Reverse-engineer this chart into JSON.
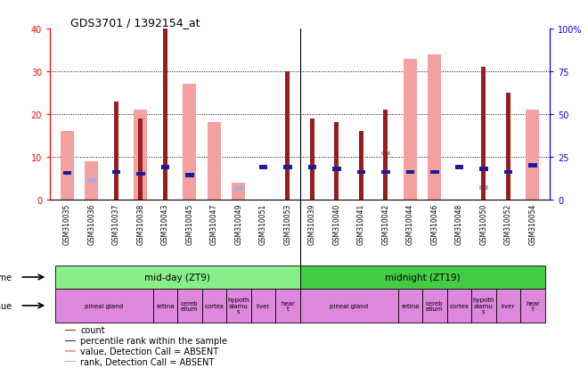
{
  "title": "GDS3701 / 1392154_at",
  "samples": [
    "GSM310035",
    "GSM310036",
    "GSM310037",
    "GSM310038",
    "GSM310043",
    "GSM310045",
    "GSM310047",
    "GSM310049",
    "GSM310051",
    "GSM310053",
    "GSM310039",
    "GSM310040",
    "GSM310041",
    "GSM310042",
    "GSM310044",
    "GSM310046",
    "GSM310048",
    "GSM310050",
    "GSM310052",
    "GSM310054"
  ],
  "count_values": [
    0,
    0,
    23,
    19,
    40,
    0,
    0,
    0,
    0,
    30,
    19,
    18,
    16,
    21,
    0,
    0,
    0,
    31,
    25,
    0
  ],
  "rank_values": [
    15.5,
    0,
    16,
    15,
    19,
    14,
    0,
    0,
    19,
    19,
    19,
    18,
    16,
    16,
    16,
    16,
    19,
    18,
    16,
    20
  ],
  "absent_count_values": [
    16,
    9,
    0,
    21,
    0,
    27,
    18,
    4,
    0,
    0,
    0,
    0,
    0,
    0,
    33,
    34,
    0,
    0,
    0,
    21
  ],
  "absent_rank_values": [
    0,
    11,
    0,
    0,
    0,
    0,
    0,
    6.5,
    0,
    0,
    0,
    0,
    0,
    27,
    0,
    0,
    0,
    7,
    0,
    0
  ],
  "ylim": [
    0,
    40
  ],
  "yticks": [
    0,
    10,
    20,
    30,
    40
  ],
  "ytick_labels": [
    "0",
    "10",
    "20",
    "30",
    "40"
  ],
  "y2ticks": [
    0,
    25,
    50,
    75,
    100
  ],
  "y2tick_labels": [
    "0",
    "25",
    "50",
    "75",
    "100%"
  ],
  "color_count": "#9B1C1C",
  "color_rank": "#1C1C9B",
  "color_absent_count": "#F4A0A0",
  "color_absent_rank": "#AAAADD",
  "time_groups": [
    {
      "label": "mid-day (ZT9)",
      "start": 0,
      "end": 9,
      "color": "#88EE88"
    },
    {
      "label": "midnight (ZT19)",
      "start": 10,
      "end": 19,
      "color": "#44CC44"
    }
  ],
  "tissue_groups": [
    {
      "label": "pineal gland",
      "start": 0,
      "end": 3
    },
    {
      "label": "retina",
      "start": 4,
      "end": 4
    },
    {
      "label": "cereb\nellum",
      "start": 5,
      "end": 5
    },
    {
      "label": "cortex",
      "start": 6,
      "end": 6
    },
    {
      "label": "hypoth\nalamu\ns",
      "start": 7,
      "end": 7
    },
    {
      "label": "liver",
      "start": 8,
      "end": 8
    },
    {
      "label": "hear\nt",
      "start": 9,
      "end": 9
    },
    {
      "label": "pineal gland",
      "start": 10,
      "end": 13
    },
    {
      "label": "retina",
      "start": 14,
      "end": 14
    },
    {
      "label": "cereb\nellum",
      "start": 15,
      "end": 15
    },
    {
      "label": "cortex",
      "start": 16,
      "end": 16
    },
    {
      "label": "hypoth\nalamu\ns",
      "start": 17,
      "end": 17
    },
    {
      "label": "liver",
      "start": 18,
      "end": 18
    },
    {
      "label": "hear\nt",
      "start": 19,
      "end": 19
    }
  ],
  "tissue_color": "#DD88DD",
  "bg_color": "#ffffff",
  "xticklabel_bg": "#cccccc"
}
